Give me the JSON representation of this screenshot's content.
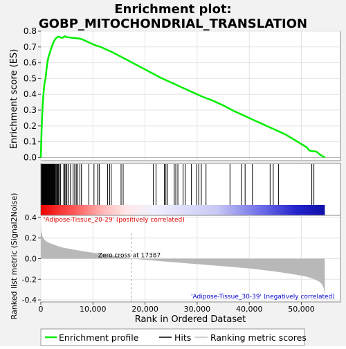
{
  "chart_data": {
    "type": "line",
    "title_line1": "Enrichment plot:",
    "title_line2": "GOBP_MITOCHONDRIAL_TRANSLATION",
    "es_panel": {
      "ylabel": "Enrichment score (ES)",
      "ylim": [
        -0.02,
        0.8
      ],
      "yticks": [
        "0.0",
        "0.1",
        "0.2",
        "0.3",
        "0.4",
        "0.5",
        "0.6",
        "0.7",
        "0.8"
      ],
      "series": [
        {
          "name": "Enrichment profile",
          "color": "#00ee00",
          "x": [
            0,
            80,
            200,
            350,
            500,
            700,
            900,
            1100,
            1300,
            1500,
            1700,
            1900,
            2100,
            2300,
            2500,
            2700,
            2900,
            3100,
            3300,
            3500,
            3800,
            4200,
            4600,
            5000,
            5500,
            6000,
            6600,
            7200,
            7800,
            8500,
            9500,
            10500,
            11500,
            12500,
            13500,
            15000,
            17000,
            19000,
            21000,
            23000,
            25000,
            27000,
            29000,
            31000,
            33000,
            35000,
            37000,
            39000,
            41000,
            43000,
            44000,
            45000,
            46000,
            47000,
            48000,
            49000,
            50000,
            51000,
            51500,
            52000,
            52500,
            53000,
            53500,
            54000,
            54500
          ],
          "y": [
            0.0,
            0.1,
            0.22,
            0.33,
            0.4,
            0.47,
            0.5,
            0.56,
            0.61,
            0.64,
            0.66,
            0.68,
            0.7,
            0.72,
            0.735,
            0.745,
            0.755,
            0.76,
            0.765,
            0.765,
            0.76,
            0.758,
            0.768,
            0.762,
            0.76,
            0.758,
            0.756,
            0.754,
            0.75,
            0.74,
            0.725,
            0.71,
            0.7,
            0.685,
            0.67,
            0.645,
            0.61,
            0.575,
            0.54,
            0.505,
            0.475,
            0.445,
            0.415,
            0.385,
            0.36,
            0.33,
            0.295,
            0.265,
            0.235,
            0.205,
            0.19,
            0.175,
            0.16,
            0.145,
            0.125,
            0.105,
            0.085,
            0.065,
            0.045,
            0.04,
            0.04,
            0.035,
            0.02,
            0.01,
            0.0
          ]
        }
      ]
    },
    "hits": [
      120,
      210,
      290,
      370,
      450,
      530,
      600,
      680,
      760,
      840,
      920,
      1000,
      1080,
      1160,
      1250,
      1340,
      1420,
      1500,
      1600,
      1700,
      1800,
      1900,
      2000,
      2100,
      2200,
      2300,
      2400,
      2500,
      2600,
      2700,
      2800,
      2950,
      3100,
      3250,
      3400,
      3600,
      3800,
      4400,
      4600,
      4800,
      5000,
      5300,
      5700,
      6200,
      6500,
      6800,
      7100,
      7500,
      7800,
      9200,
      10200,
      10900,
      11200,
      12800,
      13200,
      13500,
      15400,
      15800,
      21600,
      22100,
      23700,
      24000,
      24300,
      25600,
      25900,
      26300,
      27300,
      27700,
      28900,
      29900,
      30300,
      30800,
      31700,
      36300,
      38500,
      39200,
      40600,
      44000,
      44600,
      45600,
      52000,
      52400
    ],
    "n_genes": 54500,
    "zero_cross": 17387,
    "metric_panel": {
      "ylabel": "Ranked list metric (Signal2Noise)",
      "ylim": [
        -0.42,
        0.42
      ],
      "yticks": [
        "-0.4",
        "-0.2",
        "0.0",
        "0.2",
        "0.4"
      ],
      "x": [
        0,
        100,
        300,
        600,
        1000,
        1500,
        2500,
        4000,
        6000,
        9000,
        13000,
        17387,
        22000,
        28000,
        34000,
        40000,
        45000,
        49000,
        51000,
        52500,
        53500,
        54000,
        54300,
        54500
      ],
      "y": [
        0.3,
        0.26,
        0.22,
        0.19,
        0.17,
        0.155,
        0.135,
        0.11,
        0.09,
        0.065,
        0.035,
        0.0,
        -0.02,
        -0.045,
        -0.07,
        -0.095,
        -0.125,
        -0.155,
        -0.175,
        -0.2,
        -0.225,
        -0.25,
        -0.29,
        -0.35
      ]
    },
    "xlabel": "Rank in Ordered Dataset",
    "xticks": [
      "0",
      "10,000",
      "20,000",
      "30,000",
      "40,000",
      "50,000"
    ],
    "xtick_values": [
      0,
      10000,
      20000,
      30000,
      40000,
      50000
    ],
    "xlim": [
      0,
      57500
    ],
    "labels": {
      "positive": "'Adipose-Tissue_20-29' (positively correlated)",
      "negative": "'Adipose-Tissue_30-39' (negatively correlated)",
      "zero_cross": "Zero cross at 17387"
    },
    "legend": {
      "placement": "bottom",
      "items": [
        {
          "label": "Enrichment profile",
          "color": "#00ee00"
        },
        {
          "label": "Hits",
          "color": "#000000"
        },
        {
          "label": "Ranking metric scores",
          "color": "#c0c0c0"
        }
      ]
    },
    "colors": {
      "profile": "#00ee00",
      "metric": "#b8b8b8",
      "positive_label": "#dd0000",
      "negative_label": "#0000cc"
    }
  }
}
